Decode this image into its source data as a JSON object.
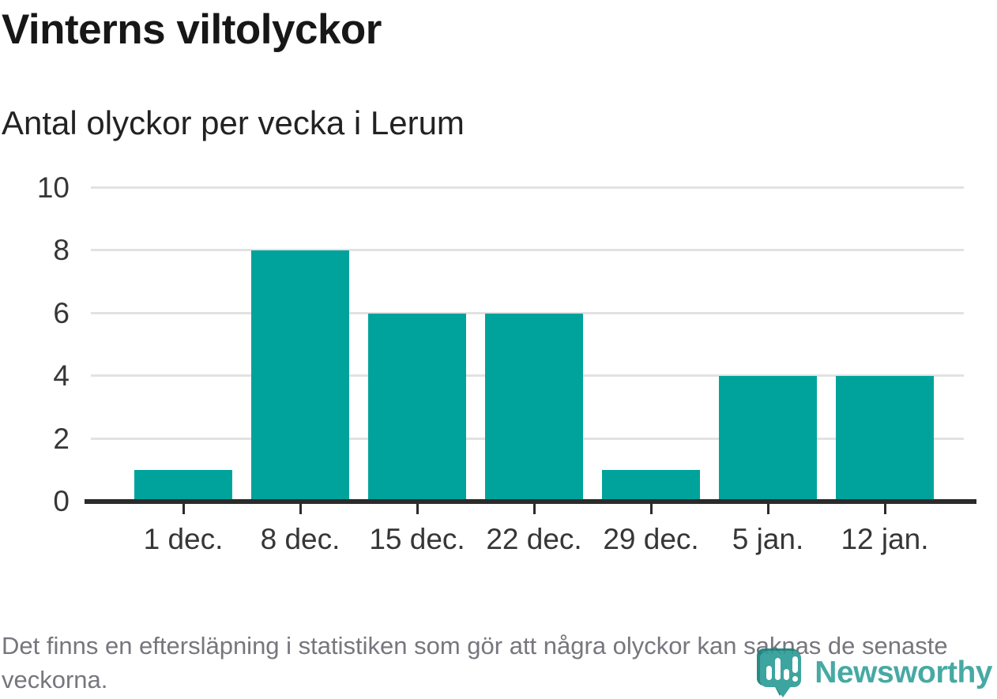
{
  "header": {
    "title": "Vinterns viltolyckor",
    "subtitle": "Antal olyckor per vecka i Lerum"
  },
  "chart_data": {
    "type": "bar",
    "title": "Vinterns viltolyckor",
    "subtitle": "Antal olyckor per vecka i Lerum",
    "categories": [
      "1 dec.",
      "8 dec.",
      "15 dec.",
      "22 dec.",
      "29 dec.",
      "5 jan.",
      "12 jan."
    ],
    "values": [
      1,
      8,
      6,
      6,
      1,
      4,
      4
    ],
    "xlabel": "",
    "ylabel": "",
    "ylim": [
      0,
      10
    ],
    "yticks": [
      0,
      2,
      4,
      6,
      8,
      10
    ],
    "grid": true,
    "legend": "none",
    "bar_color": "#00a39b"
  },
  "footer": {
    "note": "Det finns en eftersläpning i statistiken som gör att några olyckor kan saknas de senaste veckorna.",
    "brand": "Newsworthy"
  },
  "colors": {
    "bar": "#00a39b",
    "grid": "#e2e2e2",
    "axis": "#2b2b2b",
    "axis_text": "#363636",
    "footer_text": "#76767e",
    "brand": "#3aa39d",
    "logo_main": "#2f9e98",
    "logo_dark": "#1c7f7a"
  }
}
